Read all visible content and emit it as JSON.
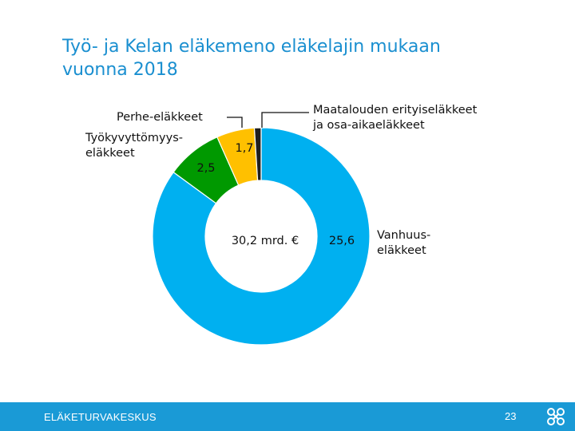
{
  "slide": {
    "title_line1": "Työ- ja Kelan eläkemeno eläkelajin mukaan",
    "title_line2": "vuonna 2018"
  },
  "chart_data": {
    "type": "pie",
    "variant": "donut",
    "center_label": "30,2 mrd. €",
    "slices": [
      {
        "label_lines": [
          "Vanhuus-",
          "eläkkeet"
        ],
        "value": 25.6,
        "value_label": "25,6",
        "color": "#00b0f0"
      },
      {
        "label_lines": [
          "Työkyvyttömyys-",
          "eläkkeet"
        ],
        "value": 2.5,
        "value_label": "2,5",
        "color": "#009900"
      },
      {
        "label_lines": [
          "Perhe-eläkkeet"
        ],
        "value": 1.7,
        "value_label": "1,7",
        "color": "#ffc000"
      },
      {
        "label_lines": [
          "Maatalouden erityiseläkkeet",
          "ja osa-aikaeläkkeet"
        ],
        "value": 0.3,
        "value_label": "",
        "color": "#1f1f1f"
      }
    ]
  },
  "footer": {
    "organization": "ELÄKETURVAKESKUS",
    "page_number": "23",
    "logo_icon": "eläketurvakeskus-logo-icon",
    "background_color": "#1a9ad6"
  }
}
